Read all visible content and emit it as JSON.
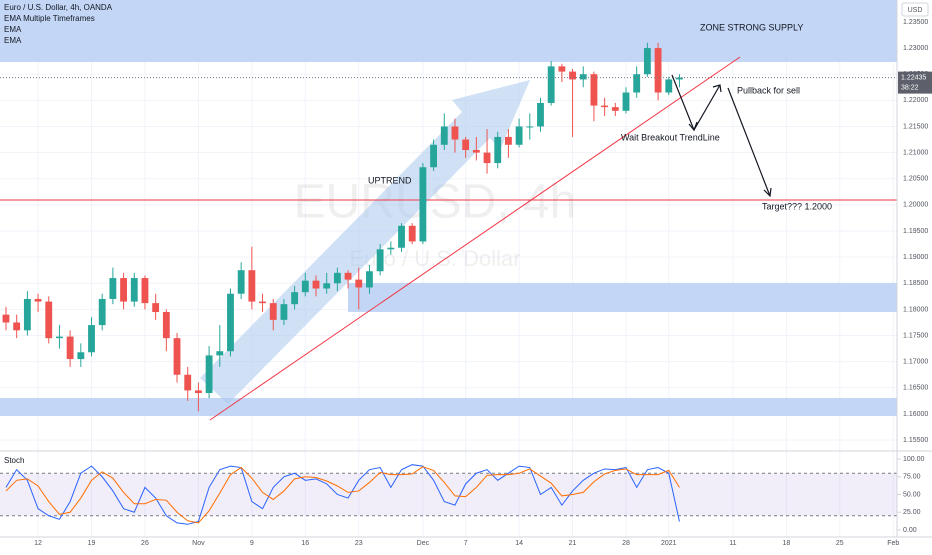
{
  "chart_data": [
    {
      "type": "candlestick",
      "title": "Euro / U.S. Dollar, 4h, OANDA",
      "indicators": [
        "EMA Multiple Timeframes",
        "EMA",
        "EMA"
      ],
      "currency": "USD",
      "watermark": [
        "EURUSD, 4h",
        "Euro / U.S. Dollar"
      ],
      "annotations": [
        "ZONE STRONG SUPPLY",
        "UPTREND",
        "Pullback for sell",
        "Wait Breakout TrendLine",
        "Target??? 1.2000"
      ],
      "last_price": 1.22435,
      "countdown": "38:22",
      "up_color": "#26a69a",
      "down_color": "#ef5350",
      "grid": true,
      "categories": [
        null,
        null,
        null,
        null,
        null,
        null,
        null,
        null,
        null,
        null,
        null,
        null,
        null,
        null,
        null,
        null,
        null,
        null,
        null,
        null,
        null,
        null,
        null,
        null,
        null,
        null,
        null,
        null,
        null,
        null,
        null,
        null,
        null,
        null,
        null,
        null,
        null,
        null,
        null,
        null,
        null,
        null,
        null,
        null,
        null,
        null,
        null,
        null,
        null,
        null,
        null,
        null,
        null,
        null,
        null,
        null,
        null,
        null,
        null,
        null,
        null,
        null,
        null,
        null
      ],
      "open": [
        1.179,
        1.1775,
        1.176,
        1.182,
        1.1815,
        1.1745,
        1.1748,
        1.1705,
        1.1718,
        1.177,
        1.182,
        1.186,
        1.1815,
        1.186,
        1.1812,
        1.1795,
        1.1745,
        1.1675,
        1.1645,
        1.164,
        1.1712,
        1.172,
        1.183,
        1.1875,
        1.1815,
        1.1812,
        1.178,
        1.181,
        1.1833,
        1.1855,
        1.184,
        1.185,
        1.187,
        1.1857,
        1.1842,
        1.1873,
        1.1915,
        1.1918,
        1.196,
        1.193,
        1.2072,
        1.2115,
        1.215,
        1.2125,
        1.2105,
        1.21,
        1.208,
        1.213,
        1.2115,
        1.215,
        1.215,
        1.2195,
        1.2265,
        1.2255,
        1.224,
        1.225,
        1.219,
        1.2187,
        1.218,
        1.2215,
        1.225,
        1.23,
        1.2215,
        1.224
      ],
      "high": [
        1.1805,
        1.179,
        1.1835,
        1.183,
        1.1825,
        1.177,
        1.176,
        1.1735,
        1.1785,
        1.183,
        1.188,
        1.187,
        1.187,
        1.1865,
        1.183,
        1.18,
        1.1755,
        1.169,
        1.166,
        1.173,
        1.177,
        1.184,
        1.189,
        1.192,
        1.183,
        1.182,
        1.182,
        1.1845,
        1.187,
        1.1865,
        1.187,
        1.188,
        1.1875,
        1.188,
        1.1885,
        1.1925,
        1.193,
        1.1965,
        1.1965,
        1.208,
        1.2125,
        1.2175,
        1.2165,
        1.213,
        1.213,
        1.2145,
        1.214,
        1.2145,
        1.2165,
        1.2175,
        1.2205,
        1.2275,
        1.227,
        1.226,
        1.2265,
        1.2255,
        1.2205,
        1.2195,
        1.2225,
        1.2265,
        1.231,
        1.231,
        1.2245,
        1.225
      ],
      "low": [
        1.176,
        1.1745,
        1.175,
        1.1795,
        1.1735,
        1.1725,
        1.169,
        1.169,
        1.171,
        1.176,
        1.181,
        1.18,
        1.1805,
        1.18,
        1.178,
        1.172,
        1.166,
        1.1625,
        1.1605,
        1.163,
        1.169,
        1.171,
        1.182,
        1.18,
        1.1795,
        1.176,
        1.177,
        1.18,
        1.1825,
        1.1825,
        1.183,
        1.1835,
        1.184,
        1.18,
        1.183,
        1.1865,
        1.1905,
        1.191,
        1.1925,
        1.1925,
        1.2065,
        1.2105,
        1.21,
        1.209,
        1.2085,
        1.206,
        1.207,
        1.209,
        1.211,
        1.2125,
        1.214,
        1.219,
        1.2235,
        1.213,
        1.2225,
        1.216,
        1.217,
        1.217,
        1.2175,
        1.2205,
        1.2245,
        1.22,
        1.221,
        1.2225
      ],
      "close": [
        1.1775,
        1.176,
        1.182,
        1.1815,
        1.1745,
        1.1748,
        1.1705,
        1.1718,
        1.177,
        1.182,
        1.186,
        1.1815,
        1.186,
        1.1812,
        1.1795,
        1.1745,
        1.1675,
        1.1645,
        1.164,
        1.1712,
        1.172,
        1.183,
        1.1875,
        1.1815,
        1.1812,
        1.178,
        1.181,
        1.1833,
        1.1855,
        1.184,
        1.185,
        1.187,
        1.1857,
        1.1842,
        1.1873,
        1.1915,
        1.1918,
        1.196,
        1.193,
        1.2072,
        1.2115,
        1.215,
        1.2125,
        1.2105,
        1.21,
        1.208,
        1.213,
        1.2115,
        1.215,
        1.215,
        1.2195,
        1.2265,
        1.2255,
        1.224,
        1.225,
        1.219,
        1.2187,
        1.218,
        1.2215,
        1.225,
        1.23,
        1.2215,
        1.224,
        1.22435
      ],
      "xlim": [
        -0.56,
        83.35
      ],
      "xticks": [
        {
          "value": 3,
          "label": "12"
        },
        {
          "value": 8,
          "label": "19"
        },
        {
          "value": 13,
          "label": "26"
        },
        {
          "value": 18,
          "label": "Nov"
        },
        {
          "value": 23,
          "label": "9"
        },
        {
          "value": 28,
          "label": "16"
        },
        {
          "value": 33,
          "label": "23"
        },
        {
          "value": 39,
          "label": "Dec"
        },
        {
          "value": 43,
          "label": "7"
        },
        {
          "value": 48,
          "label": "14"
        },
        {
          "value": 53,
          "label": "21"
        },
        {
          "value": 58,
          "label": "28"
        },
        {
          "value": 62,
          "label": "2021"
        },
        {
          "value": 68,
          "label": "11"
        },
        {
          "value": 73,
          "label": "18"
        },
        {
          "value": 78,
          "label": "25"
        },
        {
          "value": 83,
          "label": "Feb"
        }
      ],
      "ylim": [
        1.1531,
        1.2392
      ],
      "yticks": [
        {
          "value": 1.155,
          "label": "1.15500"
        },
        {
          "value": 1.16,
          "label": "1.16000"
        },
        {
          "value": 1.165,
          "label": "1.16500"
        },
        {
          "value": 1.17,
          "label": "1.17000"
        },
        {
          "value": 1.175,
          "label": "1.17500"
        },
        {
          "value": 1.18,
          "label": "1.18000"
        },
        {
          "value": 1.185,
          "label": "1.18500"
        },
        {
          "value": 1.19,
          "label": "1.19000"
        },
        {
          "value": 1.195,
          "label": "1.19500"
        },
        {
          "value": 1.2,
          "label": "1.20000"
        },
        {
          "value": 1.205,
          "label": "1.20500"
        },
        {
          "value": 1.21,
          "label": "1.21000"
        },
        {
          "value": 1.215,
          "label": "1.21500"
        },
        {
          "value": 1.22,
          "label": "1.22000"
        },
        {
          "value": 1.225,
          "label": "1.22500"
        },
        {
          "value": 1.23,
          "label": "1.23000"
        },
        {
          "value": 1.235,
          "label": "1.23500"
        }
      ]
    },
    {
      "type": "line",
      "title": "Stoch",
      "ylim": [
        -9.9,
        109.9
      ],
      "yticks": [
        {
          "value": 0,
          "label": "0.00"
        },
        {
          "value": 25,
          "label": "25.00"
        },
        {
          "value": 50,
          "label": "50.00"
        },
        {
          "value": 75,
          "label": "75.00"
        },
        {
          "value": 100,
          "label": "100.00"
        }
      ],
      "band": [
        20,
        80
      ],
      "series": [
        {
          "color": "#2962ff",
          "values": [
            60,
            85,
            70,
            30,
            20,
            15,
            40,
            80,
            90,
            75,
            55,
            30,
            25,
            60,
            45,
            20,
            10,
            8,
            12,
            60,
            85,
            90,
            88,
            40,
            30,
            60,
            75,
            80,
            70,
            72,
            65,
            50,
            45,
            70,
            85,
            88,
            60,
            85,
            92,
            90,
            70,
            40,
            35,
            65,
            80,
            85,
            70,
            80,
            90,
            88,
            50,
            60,
            35,
            55,
            70,
            80,
            86,
            85,
            88,
            60,
            85,
            88,
            80,
            12
          ]
        },
        {
          "color": "#ff6d00",
          "values": [
            55,
            70,
            72,
            62,
            40,
            22,
            25,
            45,
            70,
            82,
            73,
            53,
            37,
            37,
            43,
            42,
            25,
            13,
            10,
            27,
            52,
            78,
            88,
            73,
            53,
            43,
            55,
            72,
            75,
            74,
            69,
            62,
            53,
            55,
            67,
            81,
            78,
            78,
            79,
            89,
            84,
            67,
            48,
            47,
            60,
            77,
            78,
            78,
            80,
            86,
            76,
            66,
            48,
            50,
            53,
            68,
            79,
            84,
            86,
            78,
            78,
            78,
            84,
            60
          ]
        }
      ]
    }
  ]
}
